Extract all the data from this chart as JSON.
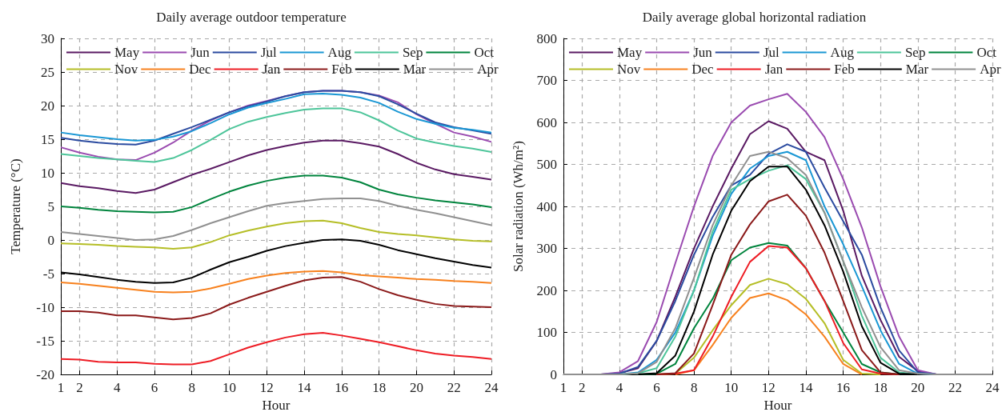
{
  "chart_data": [
    {
      "type": "line",
      "title": "Daily average outdoor temperature",
      "xlabel": "Hour",
      "ylabel": "Temperature (°C)",
      "x": [
        1,
        2,
        3,
        4,
        5,
        6,
        7,
        8,
        9,
        10,
        11,
        12,
        13,
        14,
        15,
        16,
        17,
        18,
        19,
        20,
        21,
        22,
        23,
        24
      ],
      "xlim": [
        1,
        24
      ],
      "xticks": [
        1,
        2,
        4,
        6,
        8,
        10,
        12,
        14,
        16,
        18,
        20,
        22,
        24
      ],
      "ylim": [
        -20,
        30
      ],
      "yticks": [
        -20,
        -15,
        -10,
        -5,
        0,
        5,
        10,
        15,
        20,
        25,
        30
      ],
      "grid": true,
      "legend": "top",
      "marker": "none",
      "series": [
        {
          "name": "May",
          "color": "#5a1a63",
          "values": [
            8.5,
            8.0,
            7.7,
            7.3,
            7.0,
            7.5,
            8.6,
            9.7,
            10.6,
            11.6,
            12.6,
            13.4,
            14.0,
            14.5,
            14.8,
            14.8,
            14.4,
            13.9,
            12.8,
            11.5,
            10.5,
            9.8,
            9.4,
            9.0
          ]
        },
        {
          "name": "Jun",
          "color": "#9a4bb0",
          "values": [
            13.8,
            13.0,
            12.4,
            12.0,
            11.9,
            13.0,
            14.5,
            16.3,
            17.8,
            19.0,
            20.0,
            20.7,
            21.4,
            22.0,
            22.2,
            22.2,
            22.0,
            21.5,
            20.5,
            18.7,
            17.3,
            16.0,
            15.4,
            14.6
          ]
        },
        {
          "name": "Jul",
          "color": "#2b4ba0",
          "values": [
            15.2,
            14.8,
            14.5,
            14.3,
            14.2,
            14.8,
            15.8,
            16.8,
            17.9,
            19.0,
            19.9,
            20.6,
            21.4,
            22.0,
            22.2,
            22.2,
            22.0,
            21.4,
            20.2,
            18.8,
            17.5,
            16.8,
            16.3,
            15.8
          ]
        },
        {
          "name": "Aug",
          "color": "#1a97d4",
          "values": [
            16.0,
            15.6,
            15.3,
            15.0,
            14.8,
            14.9,
            15.4,
            16.2,
            17.4,
            18.7,
            19.7,
            20.4,
            21.0,
            21.7,
            21.8,
            21.6,
            21.2,
            20.4,
            19.1,
            18.0,
            17.3,
            16.7,
            16.4,
            16.0
          ]
        },
        {
          "name": "Sep",
          "color": "#4dc59a",
          "values": [
            12.8,
            12.5,
            12.2,
            12.0,
            11.8,
            11.6,
            12.2,
            13.4,
            14.9,
            16.5,
            17.6,
            18.3,
            18.9,
            19.4,
            19.6,
            19.6,
            19.0,
            17.8,
            16.3,
            15.1,
            14.5,
            14.0,
            13.6,
            13.1
          ]
        },
        {
          "name": "Oct",
          "color": "#00843d",
          "values": [
            5.0,
            4.8,
            4.5,
            4.3,
            4.2,
            4.1,
            4.2,
            4.9,
            6.1,
            7.2,
            8.1,
            8.8,
            9.3,
            9.6,
            9.6,
            9.3,
            8.6,
            7.5,
            6.8,
            6.3,
            5.9,
            5.6,
            5.3,
            4.9
          ]
        },
        {
          "name": "Nov",
          "color": "#b5be26",
          "values": [
            -0.5,
            -0.6,
            -0.7,
            -0.9,
            -1.0,
            -1.1,
            -1.3,
            -1.1,
            -0.3,
            0.7,
            1.4,
            2.0,
            2.5,
            2.8,
            2.9,
            2.5,
            1.8,
            1.2,
            0.9,
            0.7,
            0.4,
            0.1,
            -0.1,
            -0.2
          ]
        },
        {
          "name": "Dec",
          "color": "#f7811e",
          "values": [
            -6.3,
            -6.5,
            -6.8,
            -7.1,
            -7.4,
            -7.7,
            -7.8,
            -7.7,
            -7.2,
            -6.5,
            -5.8,
            -5.3,
            -4.9,
            -4.7,
            -4.6,
            -4.8,
            -5.2,
            -5.4,
            -5.6,
            -5.8,
            -5.9,
            -6.1,
            -6.2,
            -6.4
          ]
        },
        {
          "name": "Jan",
          "color": "#ee1c24",
          "values": [
            -17.7,
            -17.8,
            -18.1,
            -18.2,
            -18.2,
            -18.4,
            -18.5,
            -18.5,
            -18.0,
            -17.0,
            -16.0,
            -15.2,
            -14.5,
            -14.0,
            -13.8,
            -14.2,
            -14.7,
            -15.2,
            -15.8,
            -16.4,
            -16.9,
            -17.2,
            -17.4,
            -17.7
          ]
        },
        {
          "name": "Feb",
          "color": "#8b1a1a",
          "values": [
            -10.6,
            -10.6,
            -10.8,
            -11.2,
            -11.2,
            -11.5,
            -11.8,
            -11.6,
            -10.9,
            -9.6,
            -8.6,
            -7.7,
            -6.8,
            -6.0,
            -5.6,
            -5.5,
            -6.2,
            -7.3,
            -8.2,
            -8.9,
            -9.5,
            -9.8,
            -9.9,
            -10.0
          ]
        },
        {
          "name": "Mar",
          "color": "#000000",
          "values": [
            -4.8,
            -5.1,
            -5.5,
            -5.9,
            -6.2,
            -6.4,
            -6.3,
            -5.6,
            -4.4,
            -3.3,
            -2.5,
            -1.6,
            -0.9,
            -0.4,
            0.0,
            0.1,
            -0.1,
            -0.7,
            -1.5,
            -2.1,
            -2.7,
            -3.2,
            -3.7,
            -4.1
          ]
        },
        {
          "name": "Apr",
          "color": "#909090",
          "values": [
            1.2,
            0.9,
            0.6,
            0.3,
            0.0,
            0.1,
            0.6,
            1.5,
            2.5,
            3.4,
            4.3,
            5.1,
            5.5,
            5.8,
            6.1,
            6.2,
            6.2,
            5.8,
            5.1,
            4.5,
            4.0,
            3.4,
            2.8,
            2.2
          ]
        }
      ]
    },
    {
      "type": "line",
      "title": "Daily average global horizontal radiation",
      "xlabel": "Hour",
      "ylabel": "Solar radiation (Wh/m²)",
      "x": [
        1,
        2,
        3,
        4,
        5,
        6,
        7,
        8,
        9,
        10,
        11,
        12,
        13,
        14,
        15,
        16,
        17,
        18,
        19,
        20,
        21,
        22,
        23,
        24
      ],
      "xlim": [
        1,
        24
      ],
      "xticks": [
        1,
        2,
        4,
        6,
        8,
        10,
        12,
        14,
        16,
        18,
        20,
        22,
        24
      ],
      "ylim": [
        0,
        800
      ],
      "yticks": [
        0,
        100,
        200,
        300,
        400,
        500,
        600,
        700,
        800
      ],
      "grid": true,
      "legend": "top",
      "marker": "none",
      "series": [
        {
          "name": "May",
          "color": "#5a1a63",
          "values": [
            null,
            null,
            0,
            3,
            15,
            80,
            185,
            300,
            400,
            490,
            572,
            603,
            585,
            530,
            510,
            390,
            235,
            130,
            42,
            8,
            0,
            null,
            null,
            null
          ]
        },
        {
          "name": "Jun",
          "color": "#9a4bb0",
          "values": [
            null,
            null,
            0,
            5,
            32,
            125,
            265,
            400,
            520,
            600,
            640,
            655,
            668,
            625,
            565,
            465,
            350,
            210,
            90,
            10,
            0,
            null,
            null,
            null
          ]
        },
        {
          "name": "Jul",
          "color": "#2b4ba0",
          "values": [
            null,
            null,
            0,
            2,
            18,
            80,
            175,
            285,
            375,
            450,
            475,
            525,
            548,
            530,
            445,
            365,
            285,
            160,
            57,
            5,
            0,
            null,
            null,
            null
          ]
        },
        {
          "name": "Aug",
          "color": "#1a97d4",
          "values": [
            null,
            null,
            null,
            0,
            5,
            35,
            100,
            200,
            330,
            430,
            490,
            520,
            530,
            510,
            400,
            310,
            210,
            105,
            25,
            2,
            0,
            null,
            null,
            null
          ]
        },
        {
          "name": "Sep",
          "color": "#4dc59a",
          "values": [
            null,
            null,
            null,
            0,
            3,
            15,
            90,
            200,
            340,
            440,
            465,
            485,
            498,
            465,
            385,
            270,
            140,
            40,
            5,
            0,
            null,
            null,
            null,
            null
          ]
        },
        {
          "name": "Oct",
          "color": "#00843d",
          "values": [
            null,
            null,
            null,
            null,
            0,
            2,
            25,
            110,
            180,
            272,
            302,
            313,
            307,
            253,
            175,
            100,
            25,
            5,
            0,
            null,
            null,
            null,
            null,
            null
          ]
        },
        {
          "name": "Nov",
          "color": "#b5be26",
          "values": [
            null,
            null,
            null,
            null,
            null,
            0,
            2,
            40,
            105,
            165,
            213,
            228,
            215,
            180,
            122,
            35,
            2,
            0,
            null,
            null,
            null,
            null,
            null,
            null
          ]
        },
        {
          "name": "Dec",
          "color": "#f7811e",
          "values": [
            null,
            null,
            null,
            null,
            null,
            null,
            0,
            10,
            70,
            135,
            182,
            193,
            177,
            143,
            90,
            25,
            0,
            null,
            null,
            null,
            null,
            null,
            null,
            null
          ]
        },
        {
          "name": "Jan",
          "color": "#ee1c24",
          "values": [
            null,
            null,
            null,
            null,
            null,
            0,
            2,
            10,
            90,
            185,
            268,
            306,
            302,
            253,
            175,
            75,
            12,
            2,
            0,
            null,
            null,
            null,
            null,
            null
          ]
        },
        {
          "name": "Feb",
          "color": "#8b1a1a",
          "values": [
            null,
            null,
            null,
            null,
            null,
            0,
            3,
            50,
            165,
            285,
            357,
            412,
            428,
            378,
            290,
            175,
            58,
            5,
            0,
            null,
            null,
            null,
            null,
            null
          ]
        },
        {
          "name": "Mar",
          "color": "#000000",
          "values": [
            null,
            null,
            null,
            null,
            0,
            3,
            45,
            150,
            285,
            390,
            460,
            495,
            495,
            440,
            355,
            245,
            115,
            28,
            2,
            0,
            null,
            null,
            null,
            null
          ]
        },
        {
          "name": "Apr",
          "color": "#909090",
          "values": [
            0,
            0,
            0,
            0,
            3,
            30,
            110,
            230,
            355,
            450,
            520,
            530,
            515,
            475,
            385,
            270,
            160,
            65,
            10,
            2,
            0,
            0,
            0,
            0
          ]
        }
      ]
    }
  ]
}
